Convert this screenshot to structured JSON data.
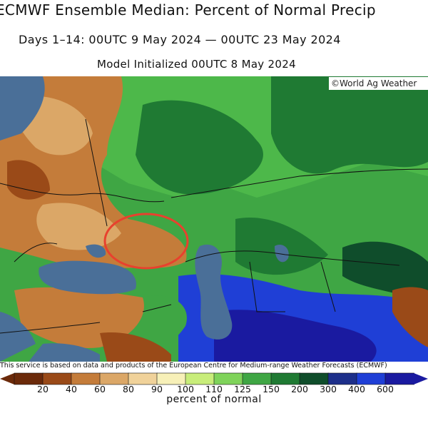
{
  "header": {
    "title": "ECMWF Ensemble Median: Percent of Normal Precip",
    "subtitle": "Days 1–14: 00UTC 9 May 2024 — 00UTC 23 May 2024",
    "init": "Model Initialized 00UTC 8 May 2024"
  },
  "map": {
    "credit": "©World Ag Weather",
    "water_color": "#4a6f98",
    "highlight_color": "#e8412e"
  },
  "footer": {
    "disclaimer": "This service is based on data and products of the European Centre for Medium-range Weather Forecasts (ECMWF)",
    "unit_label": "percent of normal"
  },
  "legend": {
    "colors": [
      "#6b2a0a",
      "#9a4a18",
      "#c47c3a",
      "#dba767",
      "#f0d29a",
      "#f7f0b8",
      "#c8ed7a",
      "#7fd35a",
      "#3fa644",
      "#1f7a33",
      "#0f4d2b",
      "#1d2f8a",
      "#1f3fd6",
      "#1a1aa0"
    ],
    "ticks": [
      "20",
      "40",
      "60",
      "80",
      "90",
      "100",
      "110",
      "125",
      "150",
      "200",
      "300",
      "400",
      "600"
    ]
  }
}
